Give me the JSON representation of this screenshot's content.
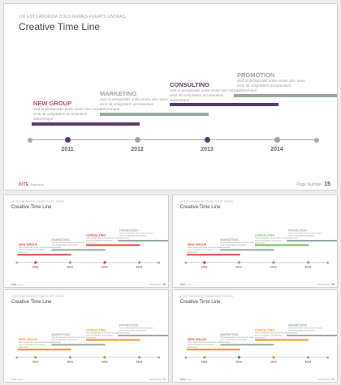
{
  "slides": [
    {
      "kicker": "LID EST LABORUM DOLO RUMES FUGATS UNTRAS.",
      "title": "Creative Time Line",
      "groups": [
        {
          "title": "NEW GROUP",
          "desc": "Sed ut perspiciatis  unde omnis iste natus error  sit voluptatem accusantium  doloremque"
        },
        {
          "title": "MARKETING",
          "desc": "Sed ut perspiciatis  unde omnis iste natus error  sit voluptatem accusantium  doloremque"
        },
        {
          "title": "CONSULTING",
          "desc": "Sed ut perspiciatis  unde omnis iste natus error  sit voluptatem accusantium  doloremque"
        },
        {
          "title": "PROMOTION",
          "desc": "Sed ut perspiciatis  unde omnis iste natus error  sit voluptatem accusantium  doloremque"
        }
      ],
      "years": [
        "2011",
        "2012",
        "2013",
        "2014"
      ],
      "brand": "KITE",
      "brand_sub": "Business",
      "page_label": "Page Number",
      "page_number": "15",
      "colors": {
        "group1": "#ba4f6e",
        "group1_bar": "#5b3a6b",
        "group2": "#98a8a2",
        "group3": "#5b3a6b",
        "group4": "#98a8a2",
        "dot1": "#5b3a6b",
        "dot2": "#98a8a2",
        "dot3": "#5b3a6b",
        "dot4": "#98a8a2"
      }
    },
    {
      "kicker": "LID EST LABORUM DOLO RUMES FUGATS UNTRAS.",
      "title": "Creative Time Line",
      "groups": [
        {
          "title": "NEW GROUP",
          "desc": "Sed ut perspiciatis  unde omnis iste natus error  sit voluptatem accusantium  doloremque"
        },
        {
          "title": "MARKETING",
          "desc": "Sed ut perspiciatis  unde omnis iste natus error  sit voluptatem accusantium  doloremque"
        },
        {
          "title": "CONSULTING",
          "desc": "Sed ut perspiciatis  unde omnis iste natus error  sit voluptatem accusantium  doloremque"
        },
        {
          "title": "PROMOTION",
          "desc": "Sed ut perspiciatis  unde omnis iste natus error  sit voluptatem accusantium  doloremque"
        }
      ],
      "years": [
        "2011",
        "2012",
        "2013",
        "2014"
      ],
      "brand": "KITE",
      "brand_sub": "Business",
      "page_label": "Page Number",
      "page_number": "15",
      "colors": {
        "group1": "#e0493a",
        "group1_bar": "#e0493a",
        "group2": "#98a8a2",
        "group3": "#e0493a",
        "group4": "#98a8a2",
        "dot1": "#e0493a",
        "dot2": "#98a8a2",
        "dot3": "#e0493a",
        "dot4": "#98a8a2"
      }
    },
    {
      "kicker": "LID EST LABORUM DOLO RUMES FUGATS UNTRAS.",
      "title": "Creative Time Line",
      "groups": [
        {
          "title": "NEW GROUP",
          "desc": "Sed ut perspiciatis  unde omnis iste natus error  sit voluptatem accusantium  doloremque"
        },
        {
          "title": "MARKETING",
          "desc": "Sed ut perspiciatis  unde omnis iste natus error  sit voluptatem accusantium  doloremque"
        },
        {
          "title": "CONSULTING",
          "desc": "Sed ut perspiciatis  unde omnis iste natus error  sit voluptatem accusantium  doloremque"
        },
        {
          "title": "PROMOTION",
          "desc": "Sed ut perspiciatis  unde omnis iste natus error  sit voluptatem accusantium  doloremque"
        }
      ],
      "years": [
        "2011",
        "2012",
        "2013",
        "2014"
      ],
      "brand": "KITE",
      "brand_sub": "Business",
      "page_label": "Page Number",
      "page_number": "15",
      "colors": {
        "group1": "#e0493a",
        "group1_bar": "#e0493a",
        "group2": "#98a8a2",
        "group3": "#6dbf5e",
        "group4": "#98a8a2",
        "dot1": "#e0493a",
        "dot2": "#98a8a2",
        "dot3": "#6dbf5e",
        "dot4": "#98a8a2"
      }
    },
    {
      "kicker": "LID EST LABORUM DOLO RUMES FUGATS UNTRAS.",
      "title": "Creative Time Line",
      "groups": [
        {
          "title": "NEW GROUP",
          "desc": "Sed ut perspiciatis  unde omnis iste natus error  sit voluptatem accusantium  doloremque"
        },
        {
          "title": "MARKETING",
          "desc": "Sed ut perspiciatis  unde omnis iste natus error  sit voluptatem accusantium  doloremque"
        },
        {
          "title": "CONSULTING",
          "desc": "Sed ut perspiciatis  unde omnis iste natus error  sit voluptatem accusantium  doloremque"
        },
        {
          "title": "PROMOTION",
          "desc": "Sed ut perspiciatis  unde omnis iste natus error  sit voluptatem accusantium  doloremque"
        }
      ],
      "years": [
        "2011",
        "2012",
        "2013",
        "2014"
      ],
      "brand": "KITE",
      "brand_sub": "Business",
      "page_label": "Page Number",
      "page_number": "15",
      "colors": {
        "group1": "#f0932b",
        "group1_bar": "#f0932b",
        "group2": "#98a8a2",
        "group3": "#f0932b",
        "group4": "#98a8a2",
        "dot1": "#f0932b",
        "dot2": "#98a8a2",
        "dot3": "#f0932b",
        "dot4": "#98a8a2"
      }
    },
    {
      "kicker": "LID EST LABORUM DOLO RUMES FUGATS UNTRAS.",
      "title": "Creative Time Line",
      "groups": [
        {
          "title": "NEW GROUP",
          "desc": "Sed ut perspiciatis  unde omnis iste natus error  sit voluptatem accusantium  doloremque"
        },
        {
          "title": "MARKETING",
          "desc": "Sed ut perspiciatis  unde omnis iste natus error  sit voluptatem accusantium  doloremque"
        },
        {
          "title": "CONSULTING",
          "desc": "Sed ut perspiciatis  unde omnis iste natus error  sit voluptatem accusantium  doloremque"
        },
        {
          "title": "PROMOTION",
          "desc": "Sed ut perspiciatis  unde omnis iste natus error  sit voluptatem accusantium  doloremque"
        }
      ],
      "years": [
        "2011",
        "2012",
        "2013",
        "2014"
      ],
      "brand": "KITE",
      "brand_sub": "Business",
      "page_label": "Page Number",
      "page_number": "15",
      "colors": {
        "group1": "#e0493a",
        "group1_bar": "#f0932b",
        "group2": "#98a8a2",
        "group3": "#f0932b",
        "group4": "#98a8a2",
        "dot1": "#f0932b",
        "dot2": "#1a9a9a",
        "dot3": "#f0932b",
        "dot4": "#98a8a2"
      }
    }
  ]
}
